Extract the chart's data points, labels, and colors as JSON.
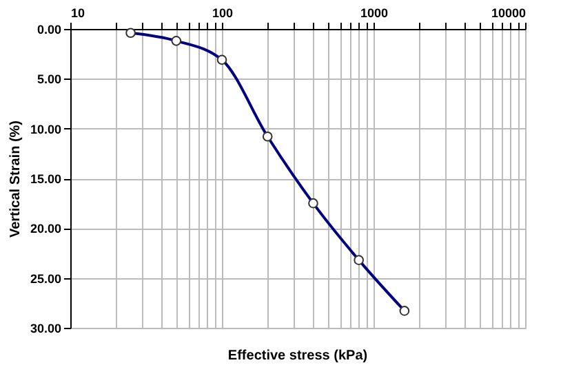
{
  "chart_data": {
    "type": "line",
    "xlabel": "Effective stress (kPa)",
    "ylabel": "Vertical Strain (%)",
    "x": [
      25,
      50,
      100,
      200,
      400,
      800,
      1600
    ],
    "series": [
      {
        "color": "#000080",
        "values": [
          0.4,
          1.2,
          3.1,
          10.8,
          17.5,
          23.2,
          28.3
        ]
      }
    ],
    "log": "x",
    "xlim": [
      10,
      10000
    ],
    "xticks": [
      10,
      {
        "value": 20,
        "label": null
      },
      {
        "value": 30,
        "label": null
      },
      {
        "value": 40,
        "label": null
      },
      {
        "value": 50,
        "label": null
      },
      {
        "value": 60,
        "label": null
      },
      {
        "value": 70,
        "label": null
      },
      {
        "value": 80,
        "label": null
      },
      {
        "value": 90,
        "label": null
      },
      100,
      {
        "value": 200,
        "label": null
      },
      {
        "value": 300,
        "label": null
      },
      {
        "value": 400,
        "label": null
      },
      {
        "value": 500,
        "label": null
      },
      {
        "value": 600,
        "label": null
      },
      {
        "value": 700,
        "label": null
      },
      {
        "value": 800,
        "label": null
      },
      {
        "value": 900,
        "label": null
      },
      1000,
      {
        "value": 2000,
        "label": null
      },
      {
        "value": 3000,
        "label": null
      },
      {
        "value": 4000,
        "label": null
      },
      {
        "value": 5000,
        "label": null
      },
      {
        "value": 6000,
        "label": null
      },
      {
        "value": 7000,
        "label": null
      },
      {
        "value": 8000,
        "label": null
      },
      {
        "value": 9000,
        "label": null
      },
      10000
    ],
    "ylim": [
      30,
      0
    ],
    "yticks": [
      {
        "value": 0,
        "label": "0.00"
      },
      {
        "value": 5,
        "label": "5.00"
      },
      {
        "value": 10,
        "label": "10.00"
      },
      {
        "value": 15,
        "label": "15.00"
      },
      {
        "value": 20,
        "label": "20.00"
      },
      {
        "value": 25,
        "label": "25.00"
      },
      {
        "value": 30,
        "label": "30.00"
      }
    ],
    "grid": true,
    "marker": "circle",
    "line_style": "solid"
  }
}
